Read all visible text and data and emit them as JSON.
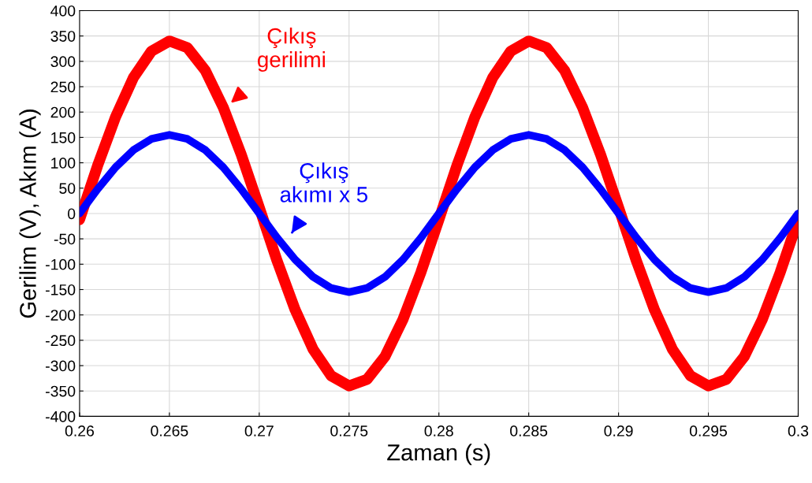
{
  "chart_data": {
    "type": "line",
    "xlabel": "Zaman (s)",
    "ylabel": "Gerilim (V), Akım (A)",
    "x": [
      0.26,
      0.261,
      0.262,
      0.263,
      0.264,
      0.265,
      0.266,
      0.267,
      0.268,
      0.269,
      0.27,
      0.271,
      0.272,
      0.273,
      0.274,
      0.275,
      0.276,
      0.277,
      0.278,
      0.279,
      0.28,
      0.281,
      0.282,
      0.283,
      0.284,
      0.285,
      0.286,
      0.287,
      0.288,
      0.289,
      0.29,
      0.291,
      0.292,
      0.293,
      0.294,
      0.295,
      0.296,
      0.297,
      0.298,
      0.299,
      0.3
    ],
    "series": [
      {
        "color": "#ff0000",
        "values": [
          -12,
          94,
          190,
          268,
          320,
          340,
          327,
          282,
          209,
          116,
          12,
          -94,
          -190,
          -268,
          -320,
          -340,
          -327,
          -282,
          -209,
          -116,
          -12,
          94,
          190,
          268,
          320,
          340,
          327,
          282,
          209,
          116,
          12,
          -94,
          -190,
          -268,
          -320,
          -340,
          -327,
          -282,
          -209,
          -116,
          -12
        ]
      },
      {
        "color": "#0000ff",
        "values": [
          0,
          48,
          91,
          125,
          147,
          155,
          147,
          125,
          91,
          48,
          0,
          -48,
          -91,
          -125,
          -147,
          -155,
          -147,
          -125,
          -91,
          -48,
          0,
          48,
          91,
          125,
          147,
          155,
          147,
          125,
          91,
          48,
          0,
          -48,
          -91,
          -125,
          -147,
          -155,
          -147,
          -125,
          -91,
          -48,
          0
        ]
      }
    ],
    "annotations": [
      {
        "text": "Çıkış\ngerilimi",
        "x": 0.268,
        "y": 205
      },
      {
        "text": "Çıkış\nakımı x 5",
        "x": 0.2715,
        "y": -55
      }
    ],
    "xlim": [
      0.26,
      0.3
    ],
    "xticks": [
      0.26,
      0.265,
      0.27,
      0.275,
      0.28,
      0.285,
      0.29,
      0.295,
      0.3
    ],
    "ylim": [
      -400,
      400
    ],
    "yticks": [
      -400,
      -350,
      -300,
      -250,
      -200,
      -150,
      -100,
      -50,
      0,
      50,
      100,
      150,
      200,
      250,
      300,
      350,
      400
    ],
    "grid": true,
    "line_style": "solid",
    "marker": "none"
  }
}
